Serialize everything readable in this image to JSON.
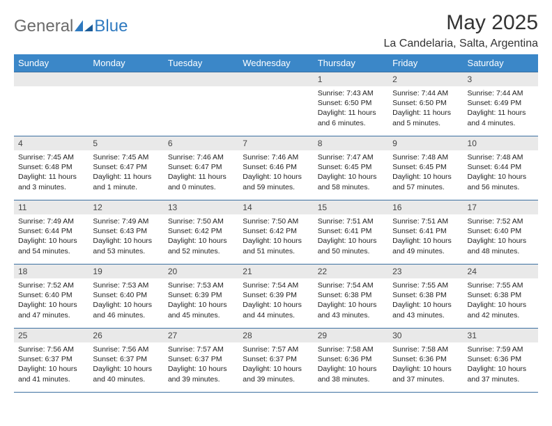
{
  "logo": {
    "general": "General",
    "blue": "Blue"
  },
  "title": "May 2025",
  "location": "La Candelaria, Salta, Argentina",
  "weekday_header_bg": "#3b87c8",
  "weekday_header_fg": "#ffffff",
  "daynum_bg": "#e9e9e9",
  "row_border_color": "#3b6fa0",
  "weekdays": [
    "Sunday",
    "Monday",
    "Tuesday",
    "Wednesday",
    "Thursday",
    "Friday",
    "Saturday"
  ],
  "weeks": [
    [
      null,
      null,
      null,
      null,
      {
        "n": "1",
        "sr": "7:43 AM",
        "ss": "6:50 PM",
        "dl": "11 hours and 6 minutes."
      },
      {
        "n": "2",
        "sr": "7:44 AM",
        "ss": "6:50 PM",
        "dl": "11 hours and 5 minutes."
      },
      {
        "n": "3",
        "sr": "7:44 AM",
        "ss": "6:49 PM",
        "dl": "11 hours and 4 minutes."
      }
    ],
    [
      {
        "n": "4",
        "sr": "7:45 AM",
        "ss": "6:48 PM",
        "dl": "11 hours and 3 minutes."
      },
      {
        "n": "5",
        "sr": "7:45 AM",
        "ss": "6:47 PM",
        "dl": "11 hours and 1 minute."
      },
      {
        "n": "6",
        "sr": "7:46 AM",
        "ss": "6:47 PM",
        "dl": "11 hours and 0 minutes."
      },
      {
        "n": "7",
        "sr": "7:46 AM",
        "ss": "6:46 PM",
        "dl": "10 hours and 59 minutes."
      },
      {
        "n": "8",
        "sr": "7:47 AM",
        "ss": "6:45 PM",
        "dl": "10 hours and 58 minutes."
      },
      {
        "n": "9",
        "sr": "7:48 AM",
        "ss": "6:45 PM",
        "dl": "10 hours and 57 minutes."
      },
      {
        "n": "10",
        "sr": "7:48 AM",
        "ss": "6:44 PM",
        "dl": "10 hours and 56 minutes."
      }
    ],
    [
      {
        "n": "11",
        "sr": "7:49 AM",
        "ss": "6:44 PM",
        "dl": "10 hours and 54 minutes."
      },
      {
        "n": "12",
        "sr": "7:49 AM",
        "ss": "6:43 PM",
        "dl": "10 hours and 53 minutes."
      },
      {
        "n": "13",
        "sr": "7:50 AM",
        "ss": "6:42 PM",
        "dl": "10 hours and 52 minutes."
      },
      {
        "n": "14",
        "sr": "7:50 AM",
        "ss": "6:42 PM",
        "dl": "10 hours and 51 minutes."
      },
      {
        "n": "15",
        "sr": "7:51 AM",
        "ss": "6:41 PM",
        "dl": "10 hours and 50 minutes."
      },
      {
        "n": "16",
        "sr": "7:51 AM",
        "ss": "6:41 PM",
        "dl": "10 hours and 49 minutes."
      },
      {
        "n": "17",
        "sr": "7:52 AM",
        "ss": "6:40 PM",
        "dl": "10 hours and 48 minutes."
      }
    ],
    [
      {
        "n": "18",
        "sr": "7:52 AM",
        "ss": "6:40 PM",
        "dl": "10 hours and 47 minutes."
      },
      {
        "n": "19",
        "sr": "7:53 AM",
        "ss": "6:40 PM",
        "dl": "10 hours and 46 minutes."
      },
      {
        "n": "20",
        "sr": "7:53 AM",
        "ss": "6:39 PM",
        "dl": "10 hours and 45 minutes."
      },
      {
        "n": "21",
        "sr": "7:54 AM",
        "ss": "6:39 PM",
        "dl": "10 hours and 44 minutes."
      },
      {
        "n": "22",
        "sr": "7:54 AM",
        "ss": "6:38 PM",
        "dl": "10 hours and 43 minutes."
      },
      {
        "n": "23",
        "sr": "7:55 AM",
        "ss": "6:38 PM",
        "dl": "10 hours and 43 minutes."
      },
      {
        "n": "24",
        "sr": "7:55 AM",
        "ss": "6:38 PM",
        "dl": "10 hours and 42 minutes."
      }
    ],
    [
      {
        "n": "25",
        "sr": "7:56 AM",
        "ss": "6:37 PM",
        "dl": "10 hours and 41 minutes."
      },
      {
        "n": "26",
        "sr": "7:56 AM",
        "ss": "6:37 PM",
        "dl": "10 hours and 40 minutes."
      },
      {
        "n": "27",
        "sr": "7:57 AM",
        "ss": "6:37 PM",
        "dl": "10 hours and 39 minutes."
      },
      {
        "n": "28",
        "sr": "7:57 AM",
        "ss": "6:37 PM",
        "dl": "10 hours and 39 minutes."
      },
      {
        "n": "29",
        "sr": "7:58 AM",
        "ss": "6:36 PM",
        "dl": "10 hours and 38 minutes."
      },
      {
        "n": "30",
        "sr": "7:58 AM",
        "ss": "6:36 PM",
        "dl": "10 hours and 37 minutes."
      },
      {
        "n": "31",
        "sr": "7:59 AM",
        "ss": "6:36 PM",
        "dl": "10 hours and 37 minutes."
      }
    ]
  ],
  "labels": {
    "sunrise": "Sunrise:",
    "sunset": "Sunset:",
    "daylight": "Daylight:"
  }
}
